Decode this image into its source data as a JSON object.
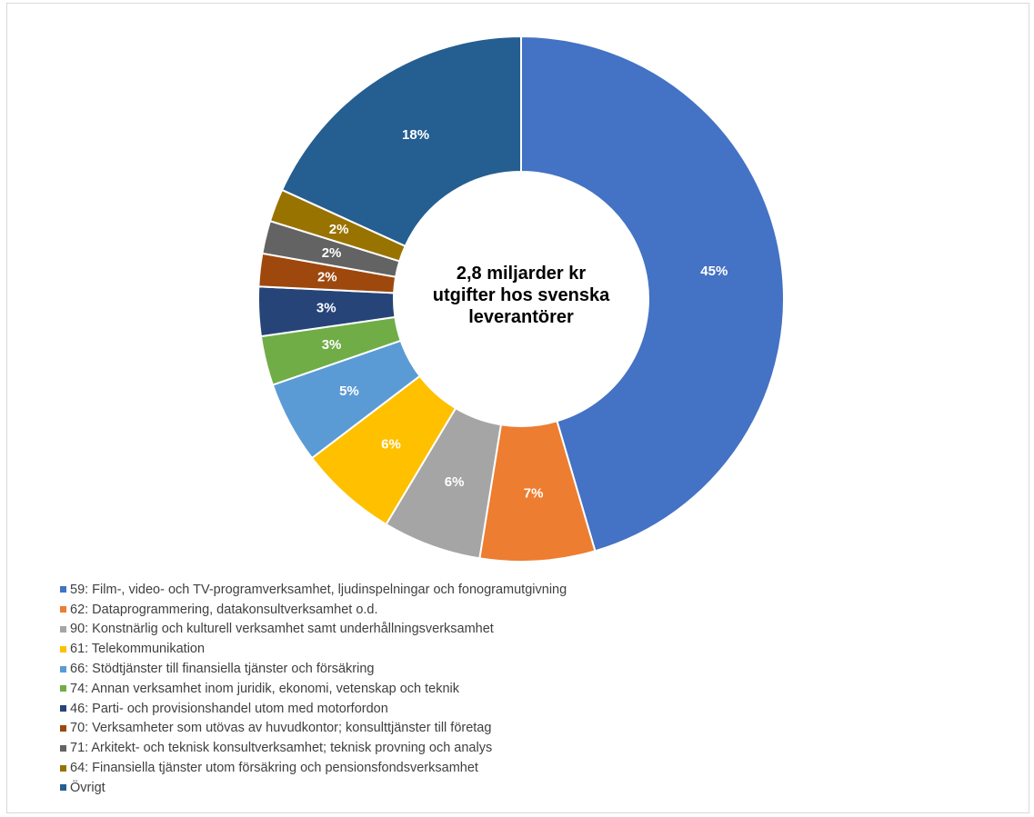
{
  "chart_data": {
    "type": "pie",
    "variant": "doughnut",
    "center_text": [
      "2,8 miljarder kr",
      "utgifter hos svenska",
      "leverantörer"
    ],
    "legend_position": "bottom",
    "series": [
      {
        "label": "59: Film-, video- och TV-programverksamhet, ljudinspelningar och fonogramutgivning",
        "value": 45,
        "display": "45%",
        "color": "#4472c4"
      },
      {
        "label": "62: Dataprogrammering, datakonsultverksamhet o.d.",
        "value": 7,
        "display": "7%",
        "color": "#ed7d31"
      },
      {
        "label": "90: Konstnärlig och kulturell verksamhet samt underhållningsverksamhet",
        "value": 6,
        "display": "6%",
        "color": "#a5a5a5"
      },
      {
        "label": "61: Telekommunikation",
        "value": 6,
        "display": "6%",
        "color": "#ffc000"
      },
      {
        "label": "66: Stödtjänster till finansiella tjänster och försäkring",
        "value": 5,
        "display": "5%",
        "color": "#5b9bd5"
      },
      {
        "label": "74: Annan verksamhet inom juridik, ekonomi, vetenskap och teknik",
        "value": 3,
        "display": "3%",
        "color": "#70ad47"
      },
      {
        "label": "46: Parti- och provisionshandel utom med motorfordon",
        "value": 3,
        "display": "3%",
        "color": "#264478"
      },
      {
        "label": "70: Verksamheter som utövas av huvudkontor; konsulttjänster till företag",
        "value": 2,
        "display": "2%",
        "color": "#9e480e"
      },
      {
        "label": "71: Arkitekt- och teknisk konsultverksamhet; teknisk provning och analys",
        "value": 2,
        "display": "2%",
        "color": "#636363"
      },
      {
        "label": "64: Finansiella tjänster utom försäkring och pensionsfondsverksamhet",
        "value": 2,
        "display": "2%",
        "color": "#997300"
      },
      {
        "label": "Övrigt",
        "value": 18,
        "display": "18%",
        "color": "#255e91"
      }
    ]
  }
}
